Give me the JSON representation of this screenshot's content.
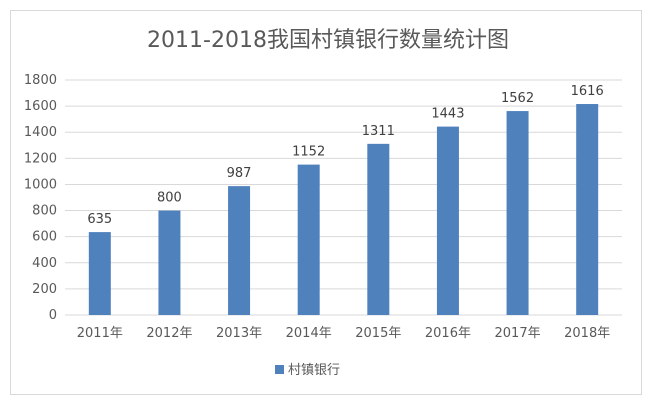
{
  "chart_data": {
    "type": "bar",
    "title": "2011-2018我国村镇银行数量统计图",
    "categories": [
      "2011年",
      "2012年",
      "2013年",
      "2014年",
      "2015年",
      "2016年",
      "2017年",
      "2018年"
    ],
    "series": [
      {
        "name": "村镇银行",
        "values": [
          635,
          800,
          987,
          1152,
          1311,
          1443,
          1562,
          1616
        ],
        "color": "#4f81bd"
      }
    ],
    "y_ticks": [
      "0",
      "200",
      "400",
      "600",
      "800",
      "1000",
      "1200",
      "1400",
      "1600",
      "1800"
    ],
    "ylim": [
      0,
      1800
    ],
    "grid": true,
    "legend_position": "bottom"
  }
}
